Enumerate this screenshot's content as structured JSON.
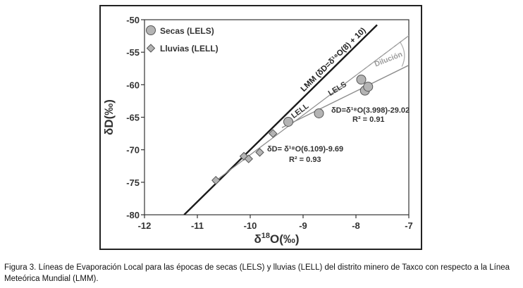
{
  "chart_data": {
    "type": "scatter",
    "xlabel_main": "δ",
    "xlabel_sup": "18",
    "xlabel_rest": "O(‰)",
    "ylabel": "δD(‰)",
    "xlim": [
      -12,
      -7
    ],
    "ylim": [
      -80,
      -50
    ],
    "xticks": [
      -12,
      -11,
      -10,
      -9,
      -8,
      -7
    ],
    "yticks": [
      -50,
      -55,
      -60,
      -65,
      -70,
      -75,
      -80
    ],
    "grid": false,
    "legend_position": "top-left",
    "series": [
      {
        "name": "Secas (LELS)",
        "marker": "circle",
        "color": "#b4b4b4",
        "points": [
          [
            -9.28,
            -65.7
          ],
          [
            -8.7,
            -64.4
          ],
          [
            -7.9,
            -59.2
          ],
          [
            -7.83,
            -60.9
          ],
          [
            -7.77,
            -60.3
          ]
        ]
      },
      {
        "name": "Lluvias (LELL)",
        "marker": "diamond",
        "color": "#b4b4b4",
        "points": [
          [
            -10.65,
            -74.7
          ],
          [
            -10.12,
            -71.0
          ],
          [
            -10.03,
            -71.4
          ],
          [
            -9.82,
            -70.4
          ],
          [
            -9.57,
            -67.5
          ]
        ]
      }
    ],
    "lines": [
      {
        "id": "lmm",
        "slope": 8,
        "intercept": 10,
        "x": [
          -11.25,
          -7.6
        ],
        "style": "solid",
        "color": "#1a1a1a",
        "width": 2.4
      },
      {
        "id": "lell",
        "slope": 6.109,
        "intercept": -9.69,
        "x": [
          -10.7,
          -7.0
        ],
        "style": "solid",
        "color": "#8c8c8c",
        "width": 1.2
      },
      {
        "id": "lels",
        "slope": 3.998,
        "intercept": -29.02,
        "x": [
          -9.4,
          -7.0
        ],
        "style": "solid",
        "color": "#8c8c8c",
        "width": 1.4
      },
      {
        "id": "dilution",
        "slope": 6.109,
        "intercept": -9.69,
        "x": [
          -8.0,
          -7.0
        ],
        "style": "dashed",
        "color": "#a8a8a8",
        "width": 1.2
      }
    ],
    "annotations": {
      "lmm_label": "LMM (δD=δ¹⁸O(8) + 10)",
      "lell_label": "LELL",
      "lels_label": "LELS",
      "dilution_label": "Dilución",
      "lels_eq": "δD=δ¹⁸O(3.998)-29.02",
      "lels_r2": "R² = 0.91",
      "lell_eq": "δD= δ¹⁸O(6.109)-9.69",
      "lell_r2": "R² = 0.93"
    }
  },
  "caption": "Figura 3. Líneas de Evaporación Local para las épocas de secas (LELS) y lluvias (LELL) del distrito minero de Taxco con respecto a la Línea Meteórica Mundial (LMM)."
}
